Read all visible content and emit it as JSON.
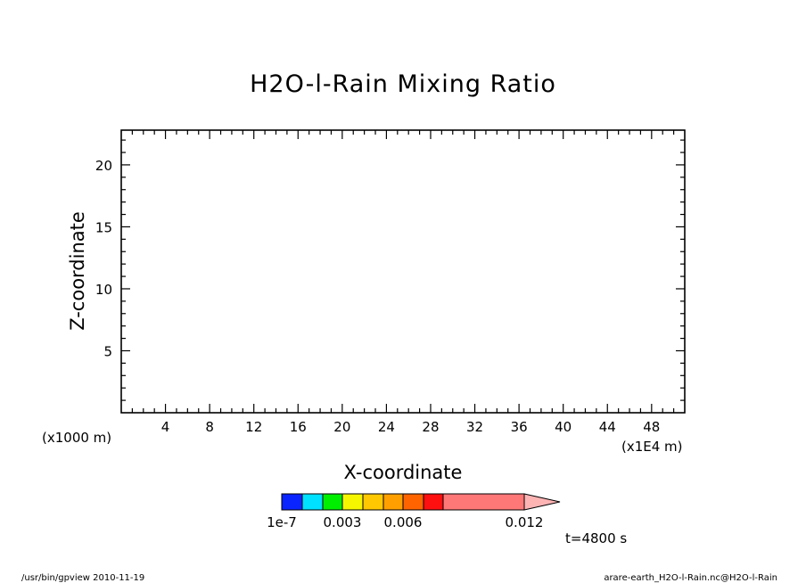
{
  "chart_data": {
    "type": "heatmap",
    "title": "H2O-l-Rain Mixing Ratio",
    "xlabel": "X-coordinate",
    "ylabel": "Z-coordinate",
    "x_unit": "(x1E4 m)",
    "y_unit": "(x1000 m)",
    "xlim": [
      0,
      51
    ],
    "ylim": [
      0,
      22.8
    ],
    "x_ticks": [
      4,
      8,
      12,
      16,
      20,
      24,
      28,
      32,
      36,
      40,
      44,
      48
    ],
    "y_ticks": [
      5,
      10,
      15,
      20
    ],
    "values": [],
    "colorbar": {
      "colors": [
        "#0a24ff",
        "#00e0ff",
        "#00ee00",
        "#f6f600",
        "#ffc800",
        "#ffa000",
        "#ff6400",
        "#ff1010",
        "#ff7878"
      ],
      "overflow_color": "#ffb4b4",
      "bounds": [
        1e-07,
        0.0015,
        0.003,
        0.0045,
        0.006,
        0.0075,
        0.009,
        0.0105,
        0.012
      ],
      "labels": [
        "1e-7",
        "0.003",
        "0.006",
        "0.012"
      ]
    },
    "time_label": "t=4800 s"
  },
  "footer": {
    "left": "/usr/bin/gpview   2010-11-19",
    "right": "arare-earth_H2O-l-Rain.nc@H2O-l-Rain"
  }
}
